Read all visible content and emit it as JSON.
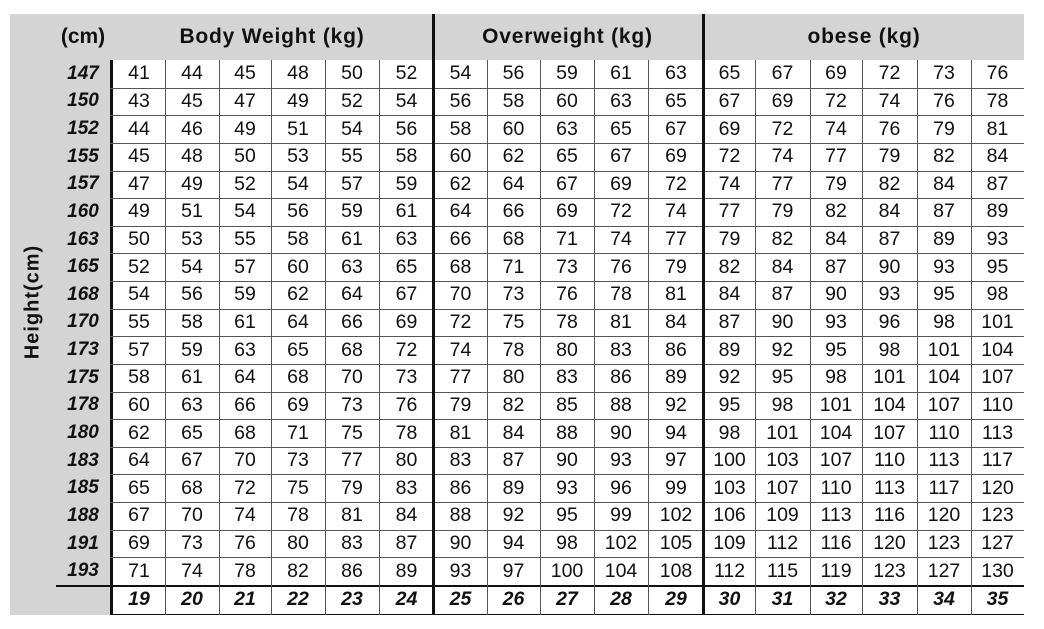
{
  "side_label": "Height(cm)",
  "header": {
    "cm": "(cm)",
    "body_weight": "Body Weight (kg)",
    "overweight": "Overweight (kg)",
    "obese": "obese (kg)"
  },
  "heights": [
    "147",
    "150",
    "152",
    "155",
    "157",
    "160",
    "163",
    "165",
    "168",
    "170",
    "173",
    "175",
    "178",
    "180",
    "183",
    "185",
    "188",
    "191",
    "193"
  ],
  "rows": [
    [
      "41",
      "44",
      "45",
      "48",
      "50",
      "52",
      "54",
      "56",
      "59",
      "61",
      "63",
      "65",
      "67",
      "69",
      "72",
      "73",
      "76"
    ],
    [
      "43",
      "45",
      "47",
      "49",
      "52",
      "54",
      "56",
      "58",
      "60",
      "63",
      "65",
      "67",
      "69",
      "72",
      "74",
      "76",
      "78"
    ],
    [
      "44",
      "46",
      "49",
      "51",
      "54",
      "56",
      "58",
      "60",
      "63",
      "65",
      "67",
      "69",
      "72",
      "74",
      "76",
      "79",
      "81"
    ],
    [
      "45",
      "48",
      "50",
      "53",
      "55",
      "58",
      "60",
      "62",
      "65",
      "67",
      "69",
      "72",
      "74",
      "77",
      "79",
      "82",
      "84"
    ],
    [
      "47",
      "49",
      "52",
      "54",
      "57",
      "59",
      "62",
      "64",
      "67",
      "69",
      "72",
      "74",
      "77",
      "79",
      "82",
      "84",
      "87"
    ],
    [
      "49",
      "51",
      "54",
      "56",
      "59",
      "61",
      "64",
      "66",
      "69",
      "72",
      "74",
      "77",
      "79",
      "82",
      "84",
      "87",
      "89"
    ],
    [
      "50",
      "53",
      "55",
      "58",
      "61",
      "63",
      "66",
      "68",
      "71",
      "74",
      "77",
      "79",
      "82",
      "84",
      "87",
      "89",
      "93"
    ],
    [
      "52",
      "54",
      "57",
      "60",
      "63",
      "65",
      "68",
      "71",
      "73",
      "76",
      "79",
      "82",
      "84",
      "87",
      "90",
      "93",
      "95"
    ],
    [
      "54",
      "56",
      "59",
      "62",
      "64",
      "67",
      "70",
      "73",
      "76",
      "78",
      "81",
      "84",
      "87",
      "90",
      "93",
      "95",
      "98"
    ],
    [
      "55",
      "58",
      "61",
      "64",
      "66",
      "69",
      "72",
      "75",
      "78",
      "81",
      "84",
      "87",
      "90",
      "93",
      "96",
      "98",
      "101"
    ],
    [
      "57",
      "59",
      "63",
      "65",
      "68",
      "72",
      "74",
      "78",
      "80",
      "83",
      "86",
      "89",
      "92",
      "95",
      "98",
      "101",
      "104"
    ],
    [
      "58",
      "61",
      "64",
      "68",
      "70",
      "73",
      "77",
      "80",
      "83",
      "86",
      "89",
      "92",
      "95",
      "98",
      "101",
      "104",
      "107"
    ],
    [
      "60",
      "63",
      "66",
      "69",
      "73",
      "76",
      "79",
      "82",
      "85",
      "88",
      "92",
      "95",
      "98",
      "101",
      "104",
      "107",
      "110"
    ],
    [
      "62",
      "65",
      "68",
      "71",
      "75",
      "78",
      "81",
      "84",
      "88",
      "90",
      "94",
      "98",
      "101",
      "104",
      "107",
      "110",
      "113"
    ],
    [
      "64",
      "67",
      "70",
      "73",
      "77",
      "80",
      "83",
      "87",
      "90",
      "93",
      "97",
      "100",
      "103",
      "107",
      "110",
      "113",
      "117"
    ],
    [
      "65",
      "68",
      "72",
      "75",
      "79",
      "83",
      "86",
      "89",
      "93",
      "96",
      "99",
      "103",
      "107",
      "110",
      "113",
      "117",
      "120"
    ],
    [
      "67",
      "70",
      "74",
      "78",
      "81",
      "84",
      "88",
      "92",
      "95",
      "99",
      "102",
      "106",
      "109",
      "113",
      "116",
      "120",
      "123"
    ],
    [
      "69",
      "73",
      "76",
      "80",
      "83",
      "87",
      "90",
      "94",
      "98",
      "102",
      "105",
      "109",
      "112",
      "116",
      "120",
      "123",
      "127"
    ],
    [
      "71",
      "74",
      "78",
      "82",
      "86",
      "89",
      "93",
      "97",
      "100",
      "104",
      "108",
      "112",
      "115",
      "119",
      "123",
      "127",
      "130"
    ]
  ],
  "bmi": [
    "19",
    "20",
    "21",
    "22",
    "23",
    "24",
    "25",
    "26",
    "27",
    "28",
    "29",
    "30",
    "31",
    "32",
    "33",
    "34",
    "35"
  ]
}
